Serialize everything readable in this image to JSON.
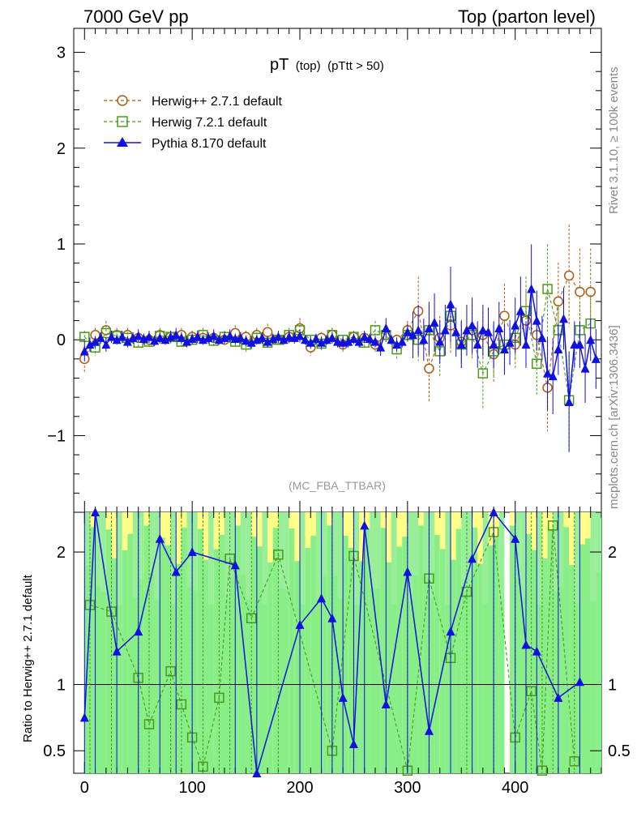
{
  "header": {
    "left": "7000 GeV pp",
    "right": "Top (parton level)"
  },
  "side_labels": {
    "rivet": "Rivet 3.1.10, ≥ 100k events",
    "mcplots": "mcplots.cern.ch [arXiv:1306.3436]"
  },
  "chart_data": {
    "type": "line",
    "title_main": "pT",
    "title_sub1": "(top)",
    "title_sub2": "(pTtt > 50)",
    "analysis_label": "(MC_FBA_TTBAR)",
    "xlim": [
      -10,
      480
    ],
    "ylim": [
      -1.8,
      3.25
    ],
    "yticks": [
      "−1",
      "0",
      "1",
      "2",
      "3"
    ],
    "xticks": [
      "0",
      "100",
      "200",
      "300",
      "400"
    ],
    "ratio_ylabel": "Ratio to Herwig++ 2.7.1 default",
    "ratio_ylim": [
      0.33,
      2.3
    ],
    "ratio_yticks": [
      "0.5",
      "1",
      "2"
    ],
    "series": [
      {
        "name": "Herwig++ 2.7.1 default",
        "color": "#b05a10",
        "marker": "circle",
        "x": [
          0,
          10,
          20,
          30,
          40,
          50,
          60,
          70,
          80,
          90,
          100,
          110,
          120,
          130,
          140,
          150,
          160,
          170,
          180,
          190,
          200,
          210,
          220,
          230,
          240,
          250,
          260,
          270,
          280,
          290,
          300,
          310,
          320,
          330,
          340,
          350,
          360,
          370,
          380,
          390,
          400,
          410,
          420,
          430,
          440,
          450,
          460,
          470
        ],
        "y": [
          -0.2,
          0.05,
          0.1,
          0.05,
          0.05,
          0.02,
          0.0,
          0.05,
          0.03,
          0.05,
          0.03,
          0.02,
          0.02,
          0.0,
          0.07,
          0.03,
          0.05,
          0.08,
          0.0,
          0.03,
          0.12,
          -0.08,
          0.02,
          0.05,
          -0.05,
          0.03,
          0.02,
          -0.05,
          0.05,
          0.0,
          0.1,
          0.3,
          -0.3,
          0.02,
          0.15,
          -0.02,
          0.1,
          0.05,
          -0.15,
          0.25,
          -0.05,
          0.2,
          0.05,
          -0.5,
          0.4,
          0.67,
          0.5,
          0.5
        ]
      },
      {
        "name": "Herwig 7.2.1 default",
        "color": "#4a9a1a",
        "marker": "square",
        "x": [
          0,
          10,
          20,
          30,
          40,
          50,
          60,
          70,
          80,
          90,
          100,
          110,
          120,
          130,
          140,
          150,
          160,
          170,
          180,
          190,
          200,
          210,
          220,
          230,
          240,
          250,
          260,
          270,
          280,
          290,
          300,
          310,
          320,
          330,
          340,
          350,
          360,
          370,
          380,
          390,
          400,
          410,
          420,
          430,
          440,
          450,
          460,
          470
        ],
        "y": [
          0.03,
          -0.08,
          0.07,
          0.04,
          0.02,
          -0.03,
          -0.02,
          0.04,
          0.03,
          -0.02,
          0.0,
          0.05,
          -0.01,
          0.03,
          -0.02,
          -0.05,
          0.02,
          -0.03,
          0.0,
          0.05,
          0.1,
          0.0,
          -0.04,
          0.05,
          0.0,
          0.03,
          -0.03,
          0.1,
          0.05,
          -0.1,
          0.05,
          0.0,
          0.1,
          -0.12,
          0.25,
          -0.05,
          0.05,
          -0.35,
          -0.12,
          -0.05,
          0.02,
          0.3,
          -0.25,
          0.53,
          0.1,
          -0.63,
          0.1,
          0.17
        ]
      },
      {
        "name": "Pythia 8.170 default",
        "color": "#1010e0",
        "marker": "triangle",
        "x": [
          0,
          5,
          10,
          15,
          20,
          25,
          30,
          35,
          40,
          45,
          50,
          55,
          60,
          65,
          70,
          75,
          80,
          85,
          90,
          95,
          100,
          105,
          110,
          115,
          120,
          125,
          130,
          135,
          140,
          145,
          150,
          155,
          160,
          165,
          170,
          175,
          180,
          185,
          190,
          195,
          200,
          205,
          210,
          215,
          220,
          225,
          230,
          235,
          240,
          245,
          250,
          255,
          260,
          265,
          270,
          275,
          280,
          285,
          290,
          295,
          300,
          305,
          310,
          315,
          320,
          325,
          330,
          335,
          340,
          345,
          350,
          355,
          360,
          365,
          370,
          375,
          380,
          385,
          390,
          395,
          400,
          405,
          410,
          415,
          420,
          425,
          430,
          435,
          440,
          445,
          450,
          455,
          460,
          465,
          470,
          475
        ],
        "y": [
          -0.12,
          -0.05,
          -0.02,
          0.02,
          -0.05,
          0.03,
          0.0,
          0.03,
          -0.02,
          0.02,
          0.04,
          0.01,
          0.03,
          -0.01,
          0.02,
          0.0,
          0.03,
          0.05,
          0.02,
          -0.02,
          0.01,
          0.03,
          0.0,
          0.02,
          0.04,
          0.0,
          0.02,
          0.04,
          0.01,
          0.02,
          -0.01,
          -0.03,
          0.0,
          0.02,
          -0.02,
          0.01,
          0.03,
          0.0,
          0.03,
          0.02,
          0.04,
          0.0,
          -0.03,
          0.01,
          -0.03,
          0.0,
          0.02,
          -0.02,
          -0.03,
          -0.02,
          0.01,
          -0.02,
          0.03,
          0.01,
          -0.02,
          -0.08,
          0.12,
          0.0,
          -0.05,
          -0.02,
          0.08,
          0.05,
          0.1,
          0.0,
          0.12,
          0.18,
          -0.02,
          0.1,
          0.37,
          0.08,
          -0.05,
          0.1,
          0.15,
          -0.05,
          0.1,
          0.08,
          -0.05,
          0.12,
          -0.1,
          -0.03,
          0.15,
          0.3,
          -0.05,
          0.53,
          0.2,
          0.02,
          -0.35,
          -0.38,
          -0.1,
          0.22,
          -0.65,
          -0.05,
          -0.05,
          -0.3,
          0.0,
          -0.2
        ]
      }
    ],
    "ratio": {
      "reference": 1,
      "herwig7_x": [
        5,
        25,
        50,
        60,
        80,
        90,
        100,
        110,
        125,
        135,
        155,
        180,
        230,
        250,
        300,
        320,
        340,
        355,
        380,
        400,
        415,
        425,
        435,
        455
      ],
      "herwig7_y": [
        1.6,
        1.55,
        1.05,
        0.7,
        1.1,
        0.85,
        0.6,
        0.38,
        0.9,
        1.95,
        1.5,
        1.98,
        0.5,
        1.97,
        0.35,
        1.8,
        1.2,
        1.7,
        2.15,
        0.6,
        0.95,
        0.35,
        2.2,
        0.42
      ],
      "pythia_x": [
        0,
        10,
        30,
        50,
        70,
        85,
        100,
        140,
        160,
        200,
        220,
        230,
        240,
        250,
        260,
        280,
        300,
        320,
        340,
        360,
        380,
        400,
        410,
        420,
        440,
        460
      ],
      "pythia_y": [
        0.75,
        2.3,
        1.25,
        1.4,
        2.1,
        1.85,
        2.0,
        1.9,
        0.3,
        1.45,
        1.65,
        1.5,
        0.9,
        0.55,
        2.2,
        0.85,
        1.85,
        0.65,
        1.4,
        1.95,
        2.3,
        2.1,
        1.3,
        1.25,
        0.9,
        1.02
      ]
    }
  }
}
